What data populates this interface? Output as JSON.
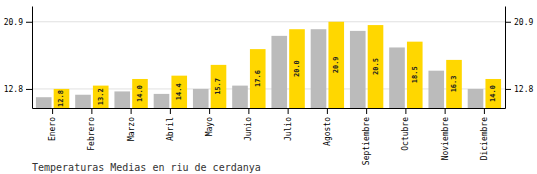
{
  "chart_data": {
    "type": "bar",
    "title": "Temperaturas Medias en riu de cerdanya",
    "categories": [
      "Enero",
      "Febrero",
      "Marzo",
      "Abril",
      "Mayo",
      "Junio",
      "Julio",
      "Agosto",
      "Septiembre",
      "Octubre",
      "Noviembre",
      "Diciembre"
    ],
    "series": [
      {
        "color": "#BBBBBB",
        "values": [
          11.8,
          12.1,
          12.5,
          12.2,
          12.8,
          13.2,
          19.2,
          20.0,
          19.8,
          17.8,
          15.0,
          12.8
        ]
      },
      {
        "color": "#FFD700",
        "values": [
          12.8,
          13.2,
          14.0,
          14.4,
          15.7,
          17.6,
          20.0,
          20.9,
          20.5,
          18.5,
          16.3,
          14.0
        ],
        "data_labels": true,
        "value_labels": [
          "12.8",
          "13.2",
          "14.0",
          "14.4",
          "15.7",
          "17.6",
          "20.0",
          "20.9",
          "20.5",
          "18.5",
          "16.3",
          "14.0"
        ]
      }
    ],
    "ylim": [
      10.5,
      22.8
    ],
    "yticks": [
      12.8,
      20.9
    ],
    "y2lim": [
      10.5,
      22.8
    ],
    "y2ticks": [
      12.8,
      20.9
    ],
    "grid": true
  }
}
